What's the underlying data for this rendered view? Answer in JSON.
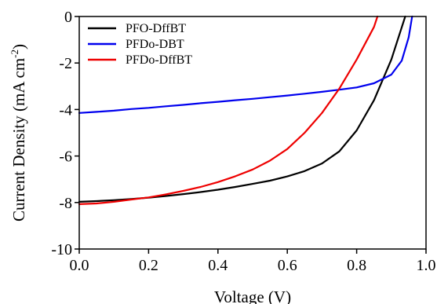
{
  "chart_data": {
    "type": "line",
    "xlabel": "Voltage (V)",
    "ylabel": {
      "main": "Current Density (mA cm",
      "sup": "-2",
      "close": ")"
    },
    "xlim": [
      0.0,
      1.0
    ],
    "ylim": [
      -10,
      0
    ],
    "x_ticks": [
      0.0,
      0.2,
      0.4,
      0.6,
      0.8,
      1.0
    ],
    "x_tick_labels": [
      "0.0",
      "0.2",
      "0.4",
      "0.6",
      "0.8",
      "1.0"
    ],
    "y_ticks": [
      0,
      -2,
      -4,
      -6,
      -8,
      -10
    ],
    "y_tick_labels": [
      "0",
      "-2",
      "-4",
      "-6",
      "-8",
      "-10"
    ],
    "grid": false,
    "legend_position": "top-left",
    "series": [
      {
        "name": "PFO-DffBT",
        "color": "#000000",
        "points": [
          [
            0.0,
            -7.97
          ],
          [
            0.05,
            -7.94
          ],
          [
            0.1,
            -7.9
          ],
          [
            0.15,
            -7.85
          ],
          [
            0.2,
            -7.79
          ],
          [
            0.25,
            -7.72
          ],
          [
            0.3,
            -7.64
          ],
          [
            0.35,
            -7.55
          ],
          [
            0.4,
            -7.45
          ],
          [
            0.45,
            -7.33
          ],
          [
            0.5,
            -7.2
          ],
          [
            0.55,
            -7.06
          ],
          [
            0.6,
            -6.88
          ],
          [
            0.65,
            -6.65
          ],
          [
            0.7,
            -6.32
          ],
          [
            0.75,
            -5.8
          ],
          [
            0.8,
            -4.9
          ],
          [
            0.85,
            -3.6
          ],
          [
            0.9,
            -1.85
          ],
          [
            0.94,
            0.0
          ]
        ]
      },
      {
        "name": "PFDo-DBT",
        "color": "#0000ee",
        "points": [
          [
            0.0,
            -4.15
          ],
          [
            0.05,
            -4.1
          ],
          [
            0.1,
            -4.05
          ],
          [
            0.15,
            -3.98
          ],
          [
            0.2,
            -3.93
          ],
          [
            0.25,
            -3.86
          ],
          [
            0.3,
            -3.8
          ],
          [
            0.35,
            -3.73
          ],
          [
            0.4,
            -3.67
          ],
          [
            0.45,
            -3.6
          ],
          [
            0.5,
            -3.54
          ],
          [
            0.55,
            -3.47
          ],
          [
            0.6,
            -3.4
          ],
          [
            0.65,
            -3.32
          ],
          [
            0.7,
            -3.24
          ],
          [
            0.75,
            -3.15
          ],
          [
            0.8,
            -3.05
          ],
          [
            0.85,
            -2.87
          ],
          [
            0.9,
            -2.5
          ],
          [
            0.93,
            -1.9
          ],
          [
            0.95,
            -0.9
          ],
          [
            0.96,
            0.0
          ]
        ]
      },
      {
        "name": "PFDo-DffBT",
        "color": "#ee0000",
        "points": [
          [
            0.0,
            -8.07
          ],
          [
            0.05,
            -8.04
          ],
          [
            0.1,
            -7.97
          ],
          [
            0.15,
            -7.87
          ],
          [
            0.2,
            -7.78
          ],
          [
            0.25,
            -7.65
          ],
          [
            0.3,
            -7.5
          ],
          [
            0.35,
            -7.33
          ],
          [
            0.4,
            -7.12
          ],
          [
            0.45,
            -6.87
          ],
          [
            0.5,
            -6.58
          ],
          [
            0.55,
            -6.2
          ],
          [
            0.6,
            -5.7
          ],
          [
            0.65,
            -5.0
          ],
          [
            0.7,
            -4.15
          ],
          [
            0.75,
            -3.1
          ],
          [
            0.8,
            -1.85
          ],
          [
            0.85,
            -0.45
          ],
          [
            0.86,
            0.0
          ]
        ]
      }
    ]
  }
}
